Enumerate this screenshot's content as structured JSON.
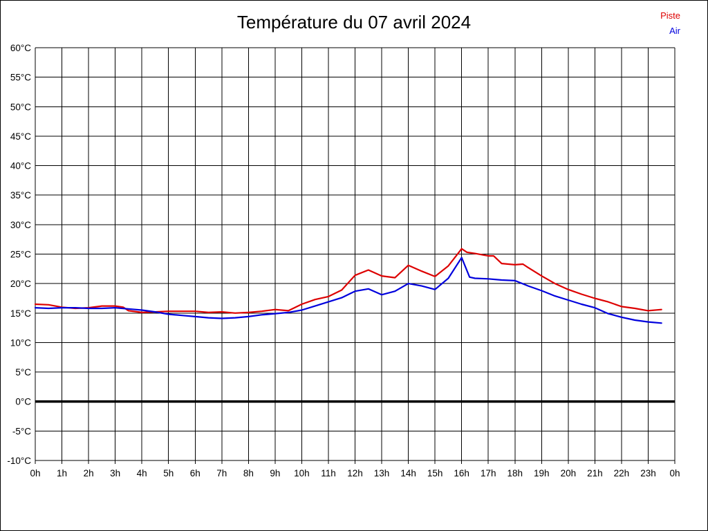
{
  "chart_data": {
    "type": "line",
    "title": "Température du 07 avril 2024",
    "x_unit": "hours",
    "y_unit": "°C",
    "xlim": [
      0,
      24
    ],
    "ylim": [
      -10,
      60
    ],
    "grid": true,
    "zero_line_value": 0,
    "legend_position": "top-right",
    "legend": [
      {
        "label": "Piste",
        "color": "#dd0000"
      },
      {
        "label": "Air",
        "color": "#0000dd"
      }
    ],
    "x_axis": {
      "tick_values": [
        0,
        1,
        2,
        3,
        4,
        5,
        6,
        7,
        8,
        9,
        10,
        11,
        12,
        13,
        14,
        15,
        16,
        17,
        18,
        19,
        20,
        21,
        22,
        23,
        24
      ],
      "tick_labels": [
        "0h",
        "1h",
        "2h",
        "3h",
        "4h",
        "5h",
        "6h",
        "7h",
        "8h",
        "9h",
        "10h",
        "11h",
        "12h",
        "13h",
        "14h",
        "15h",
        "16h",
        "17h",
        "18h",
        "19h",
        "20h",
        "21h",
        "22h",
        "23h",
        "0h"
      ]
    },
    "y_axis": {
      "tick_values": [
        60,
        55,
        50,
        45,
        40,
        35,
        30,
        25,
        20,
        15,
        10,
        5,
        0,
        -5,
        -10
      ],
      "tick_labels": [
        "60°C",
        "55°C",
        "50°C",
        "45°C",
        "40°C",
        "35°C",
        "30°C",
        "25°C",
        "20°C",
        "15°C",
        "10°C",
        "5°C",
        "0°C",
        "-5°C",
        "-10°C"
      ]
    },
    "series": [
      {
        "name": "Piste",
        "color": "#dd0000",
        "x": [
          0,
          0.5,
          1,
          1.5,
          2,
          2.5,
          3,
          3.3,
          3.5,
          4,
          4.5,
          5,
          5.5,
          6,
          6.5,
          7,
          7.5,
          8,
          8.5,
          9,
          9.5,
          10,
          10.5,
          11,
          11.5,
          12,
          12.5,
          13,
          13.5,
          14,
          14.5,
          15,
          15.5,
          16,
          16.2,
          16.5,
          17,
          17.2,
          17.5,
          18,
          18.3,
          18.5,
          19,
          19.5,
          20,
          20.5,
          21,
          21.5,
          22,
          22.5,
          23,
          23.5
        ],
        "values": [
          16.5,
          16.4,
          16.0,
          15.8,
          15.9,
          16.2,
          16.2,
          16.0,
          15.4,
          15.1,
          15.2,
          15.3,
          15.3,
          15.3,
          15.1,
          15.2,
          15.0,
          15.1,
          15.3,
          15.6,
          15.4,
          16.5,
          17.3,
          17.8,
          18.9,
          21.4,
          22.3,
          21.3,
          21.0,
          23.1,
          22.1,
          21.2,
          23.0,
          25.9,
          25.3,
          25.1,
          24.7,
          24.7,
          23.4,
          23.2,
          23.3,
          22.7,
          21.3,
          20.0,
          19.0,
          18.2,
          17.5,
          16.9,
          16.1,
          15.8,
          15.4,
          15.6
        ]
      },
      {
        "name": "Air",
        "color": "#0000dd",
        "x": [
          0,
          0.5,
          1,
          1.5,
          2,
          2.5,
          3,
          3.5,
          4,
          4.5,
          5,
          5.5,
          6,
          6.5,
          7,
          7.5,
          8,
          8.5,
          9,
          9.5,
          10,
          10.5,
          11,
          11.5,
          12,
          12.5,
          13,
          13.5,
          14,
          14.5,
          15,
          15.5,
          16,
          16.3,
          16.5,
          17,
          17.5,
          18,
          18.5,
          19,
          19.5,
          20,
          20.5,
          21,
          21.5,
          22,
          22.5,
          23,
          23.5
        ],
        "values": [
          15.9,
          15.8,
          15.9,
          15.9,
          15.8,
          15.8,
          15.9,
          15.7,
          15.5,
          15.2,
          14.8,
          14.6,
          14.4,
          14.2,
          14.1,
          14.2,
          14.4,
          14.7,
          14.9,
          15.1,
          15.5,
          16.2,
          16.9,
          17.6,
          18.7,
          19.1,
          18.1,
          18.7,
          20.0,
          19.6,
          19.0,
          20.9,
          24.4,
          21.1,
          20.9,
          20.8,
          20.6,
          20.5,
          19.6,
          18.8,
          17.9,
          17.2,
          16.5,
          15.9,
          14.9,
          14.3,
          13.8,
          13.5,
          13.3
        ]
      }
    ]
  }
}
